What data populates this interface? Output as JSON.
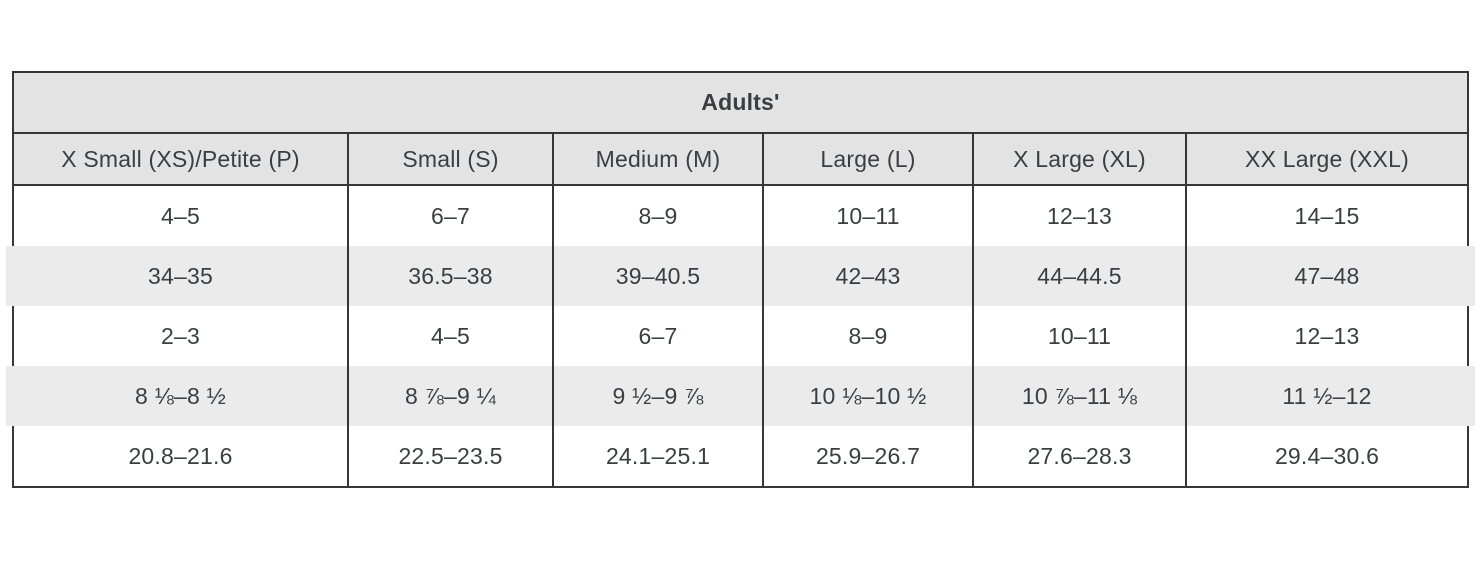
{
  "chart_data": {
    "type": "table",
    "title": "Adults'",
    "columns": [
      "X Small (XS)/Petite (P)",
      "Small (S)",
      "Medium (M)",
      "Large (L)",
      "X Large (XL)",
      "XX Large (XXL)"
    ],
    "rows": [
      [
        "4–5",
        "6–7",
        "8–9",
        "10–11",
        "12–13",
        "14–15"
      ],
      [
        "34–35",
        "36.5–38",
        "39–40.5",
        "42–43",
        "44–44.5",
        "47–48"
      ],
      [
        "2–3",
        "4–5",
        "6–7",
        "8–9",
        "10–11",
        "12–13"
      ],
      [
        "8 ⅛–8 ½",
        "8 ⅞–9 ¼",
        "9 ½–9 ⅞",
        "10 ⅛–10 ½",
        "10 ⅞–11 ⅛",
        "11 ½–12"
      ],
      [
        "20.8–21.6",
        "22.5–23.5",
        "24.1–25.1",
        "25.9–26.7",
        "27.6–28.3",
        "29.4–30.6"
      ]
    ],
    "row_stripes": [
      false,
      true,
      false,
      true,
      false
    ],
    "layout": {
      "grid": "horizontal header separators only, continuous column separators",
      "legend": "none"
    },
    "colors": {
      "header_background": "#e3e3e3",
      "stripe_background": "#ebebeb",
      "border": "#363636",
      "text": "#3b3e41",
      "page_background": "#ffffff"
    }
  }
}
